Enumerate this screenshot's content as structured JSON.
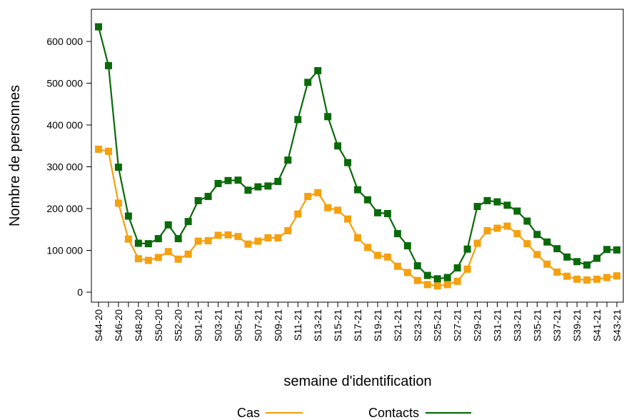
{
  "chart_data": {
    "type": "line",
    "title": "",
    "xlabel": "semaine d'identification",
    "ylabel": "Nombre de personnes",
    "ylim": [
      -30000,
      690000
    ],
    "yticks": [
      0,
      100000,
      200000,
      300000,
      400000,
      500000,
      600000
    ],
    "ytick_labels": [
      "0",
      "100 000",
      "200 000",
      "300 000",
      "400 000",
      "500 000",
      "600 000"
    ],
    "categories": [
      "S44-20",
      "S45-20",
      "S46-20",
      "S47-20",
      "S48-20",
      "S49-20",
      "S50-20",
      "S51-20",
      "S52-20",
      "S53-20",
      "S01-21",
      "S02-21",
      "S03-21",
      "S04-21",
      "S05-21",
      "S06-21",
      "S07-21",
      "S08-21",
      "S09-21",
      "S10-21",
      "S11-21",
      "S12-21",
      "S13-21",
      "S14-21",
      "S15-21",
      "S16-21",
      "S17-21",
      "S18-21",
      "S19-21",
      "S20-21",
      "S21-21",
      "S22-21",
      "S23-21",
      "S24-21",
      "S25-21",
      "S26-21",
      "S27-21",
      "S28-21",
      "S29-21",
      "S30-21",
      "S31-21",
      "S32-21",
      "S33-21",
      "S34-21",
      "S35-21",
      "S36-21",
      "S37-21",
      "S38-21",
      "S39-21",
      "S40-21",
      "S41-21",
      "S42-21",
      "S43-21"
    ],
    "xtick_labels": [
      "S44-20",
      "S46-20",
      "S48-20",
      "S50-20",
      "S52-20",
      "S01-21",
      "S03-21",
      "S05-21",
      "S07-21",
      "S09-21",
      "S11-21",
      "S13-21",
      "S15-21",
      "S17-21",
      "S19-21",
      "S21-21",
      "S23-21",
      "S25-21",
      "S27-21",
      "S29-21",
      "S31-21",
      "S33-21",
      "S35-21",
      "S37-21",
      "S39-21",
      "S41-21",
      "S43-21"
    ],
    "series": [
      {
        "name": "Cas",
        "color": "#f5a00f",
        "values": [
          342000,
          337000,
          213000,
          127000,
          80000,
          76000,
          83000,
          97000,
          79000,
          91000,
          122000,
          123000,
          136000,
          137000,
          133000,
          115000,
          122000,
          130000,
          130000,
          147000,
          187000,
          229000,
          238000,
          202000,
          196000,
          175000,
          130000,
          107000,
          88000,
          84000,
          62000,
          47000,
          28000,
          18000,
          15000,
          18000,
          26000,
          55000,
          117000,
          147000,
          153000,
          158000,
          140000,
          116000,
          90000,
          67000,
          48000,
          38000,
          31000,
          29000,
          31000,
          35000,
          39000
        ]
      },
      {
        "name": "Contacts",
        "color": "#0a6a0a",
        "values": [
          635000,
          542000,
          299000,
          182000,
          117000,
          116000,
          128000,
          161000,
          128000,
          169000,
          219000,
          229000,
          260000,
          267000,
          268000,
          244000,
          252000,
          254000,
          265000,
          316000,
          413000,
          502000,
          530000,
          420000,
          350000,
          310000,
          245000,
          221000,
          190000,
          188000,
          140000,
          111000,
          63000,
          40000,
          32000,
          35000,
          58000,
          103000,
          205000,
          219000,
          216000,
          208000,
          194000,
          170000,
          138000,
          120000,
          104000,
          84000,
          73000,
          65000,
          81000,
          102000,
          101000
        ]
      }
    ],
    "legend": {
      "placement": "bottom",
      "entries": [
        "Cas",
        "Contacts"
      ]
    },
    "grid": false
  }
}
